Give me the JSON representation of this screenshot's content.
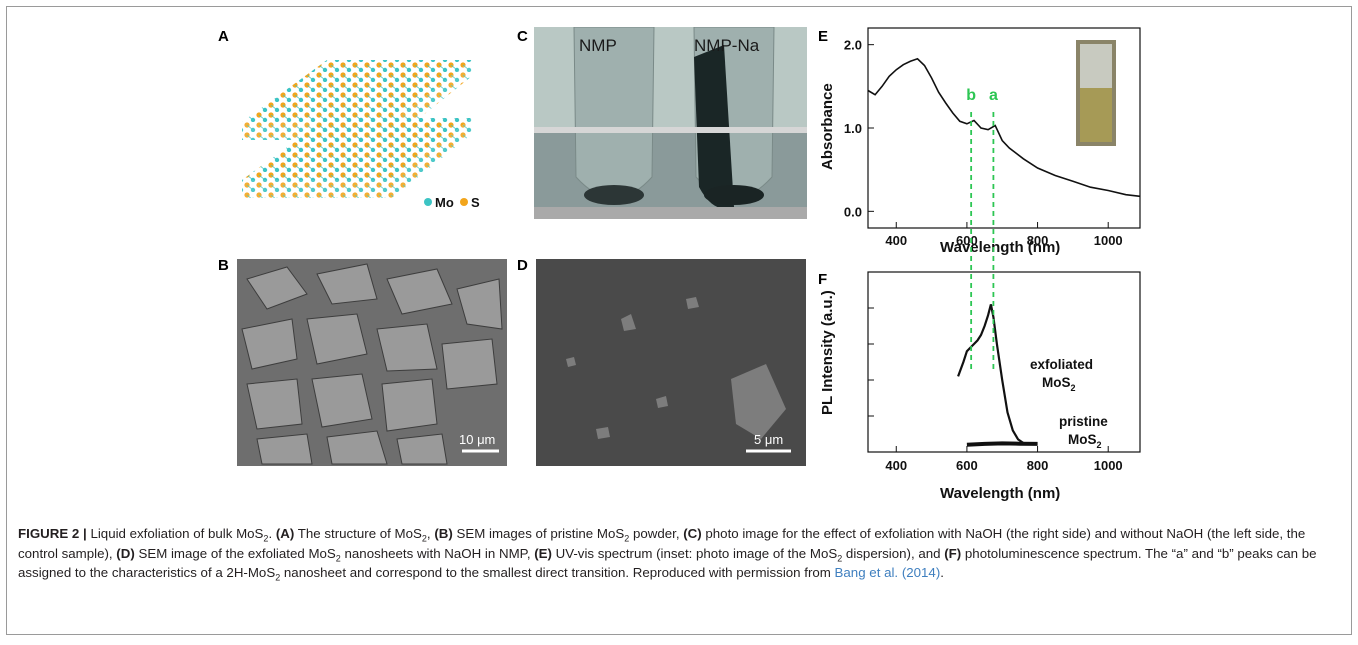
{
  "panels": {
    "a": {
      "letter": "A",
      "legend_mo": "Mo",
      "legend_s": "S"
    },
    "b": {
      "letter": "B",
      "scalebar": "10 μm"
    },
    "c": {
      "letter": "C",
      "label_left": "NMP",
      "label_right": "NMP-Na"
    },
    "d": {
      "letter": "D",
      "scalebar": "5 μm"
    },
    "e": {
      "letter": "E",
      "peak_a": "a",
      "peak_b": "b"
    },
    "f": {
      "letter": "F",
      "label_exfoliated_1": "exfoliated",
      "label_exfoliated_2": "MoS",
      "label_pristine_1": "pristine",
      "label_pristine_2": "MoS",
      "subscript_2": "2"
    }
  },
  "chart_data": [
    {
      "type": "line",
      "panel": "E",
      "xlabel": "Wavelength (nm)",
      "ylabel": "Absorbance",
      "xlim": [
        320,
        1090
      ],
      "ylim": [
        -0.2,
        2.2
      ],
      "xticks": [
        "400",
        "600",
        "800",
        "1000"
      ],
      "yticks": [
        "0.0",
        "1.0",
        "2.0"
      ],
      "series": [
        {
          "x": [
            320,
            340,
            360,
            380,
            400,
            420,
            440,
            460,
            480,
            500,
            520,
            540,
            560,
            580,
            600,
            620,
            640,
            660,
            680,
            700,
            720,
            760,
            800,
            850,
            900,
            950,
            1000,
            1050,
            1090
          ],
          "y": [
            1.45,
            1.4,
            1.5,
            1.62,
            1.7,
            1.76,
            1.8,
            1.83,
            1.75,
            1.6,
            1.43,
            1.3,
            1.18,
            1.08,
            1.05,
            1.09,
            1.0,
            0.98,
            1.03,
            0.85,
            0.76,
            0.63,
            0.52,
            0.43,
            0.36,
            0.29,
            0.25,
            0.2,
            0.18
          ]
        }
      ],
      "annotations": [
        {
          "label": "b",
          "x": 612
        },
        {
          "label": "a",
          "x": 675
        }
      ]
    },
    {
      "type": "line",
      "panel": "F",
      "xlabel": "Wavelength (nm)",
      "ylabel": "PL Intensity (a.u.)",
      "xlim": [
        320,
        1090
      ],
      "xticks": [
        "400",
        "600",
        "800",
        "1000"
      ],
      "series": [
        {
          "name": "exfoliated MoS2",
          "x": [
            575,
            590,
            600,
            610,
            620,
            630,
            640,
            650,
            660,
            668,
            675,
            685,
            700,
            715,
            730,
            745,
            760
          ],
          "y": [
            0.42,
            0.5,
            0.56,
            0.58,
            0.6,
            0.62,
            0.65,
            0.7,
            0.76,
            0.82,
            0.75,
            0.6,
            0.4,
            0.22,
            0.12,
            0.07,
            0.05
          ]
        },
        {
          "name": "pristine MoS2",
          "x": [
            600,
            650,
            700,
            750,
            800
          ],
          "y": [
            0.04,
            0.045,
            0.048,
            0.046,
            0.045
          ]
        }
      ]
    }
  ],
  "caption": {
    "fig_label": "FIGURE 2 |",
    "t1": " Liquid exfoliation of bulk MoS",
    "s1": "2",
    "t2": ". ",
    "la": "(A)",
    "t3": " The structure of MoS",
    "s2": "2",
    "t4": ", ",
    "lb": "(B)",
    "t5": " SEM images of pristine MoS",
    "s3": "2",
    "t6": " powder, ",
    "lc": "(C)",
    "t7": " photo image for the effect of exfoliation with NaOH (the right side) and without NaOH (the left side, the control sample), ",
    "ld": "(D)",
    "t8": " SEM image of the exfoliated MoS",
    "s4": "2",
    "t9": " nanosheets with NaOH in NMP, ",
    "le": "(E)",
    "t10": " UV-vis spectrum (inset: photo image of the MoS",
    "s5": "2",
    "t11": " dispersion), and ",
    "lf": "(F)",
    "t12": " photoluminescence spectrum. The “a” and “b” peaks can be assigned to the characteristics of a 2H-MoS",
    "s6": "2",
    "t13": " nanosheet and correspond to the smallest direct transition. Reproduced with permission from ",
    "cite": "Bang et al. (2014)",
    "t14": "."
  }
}
